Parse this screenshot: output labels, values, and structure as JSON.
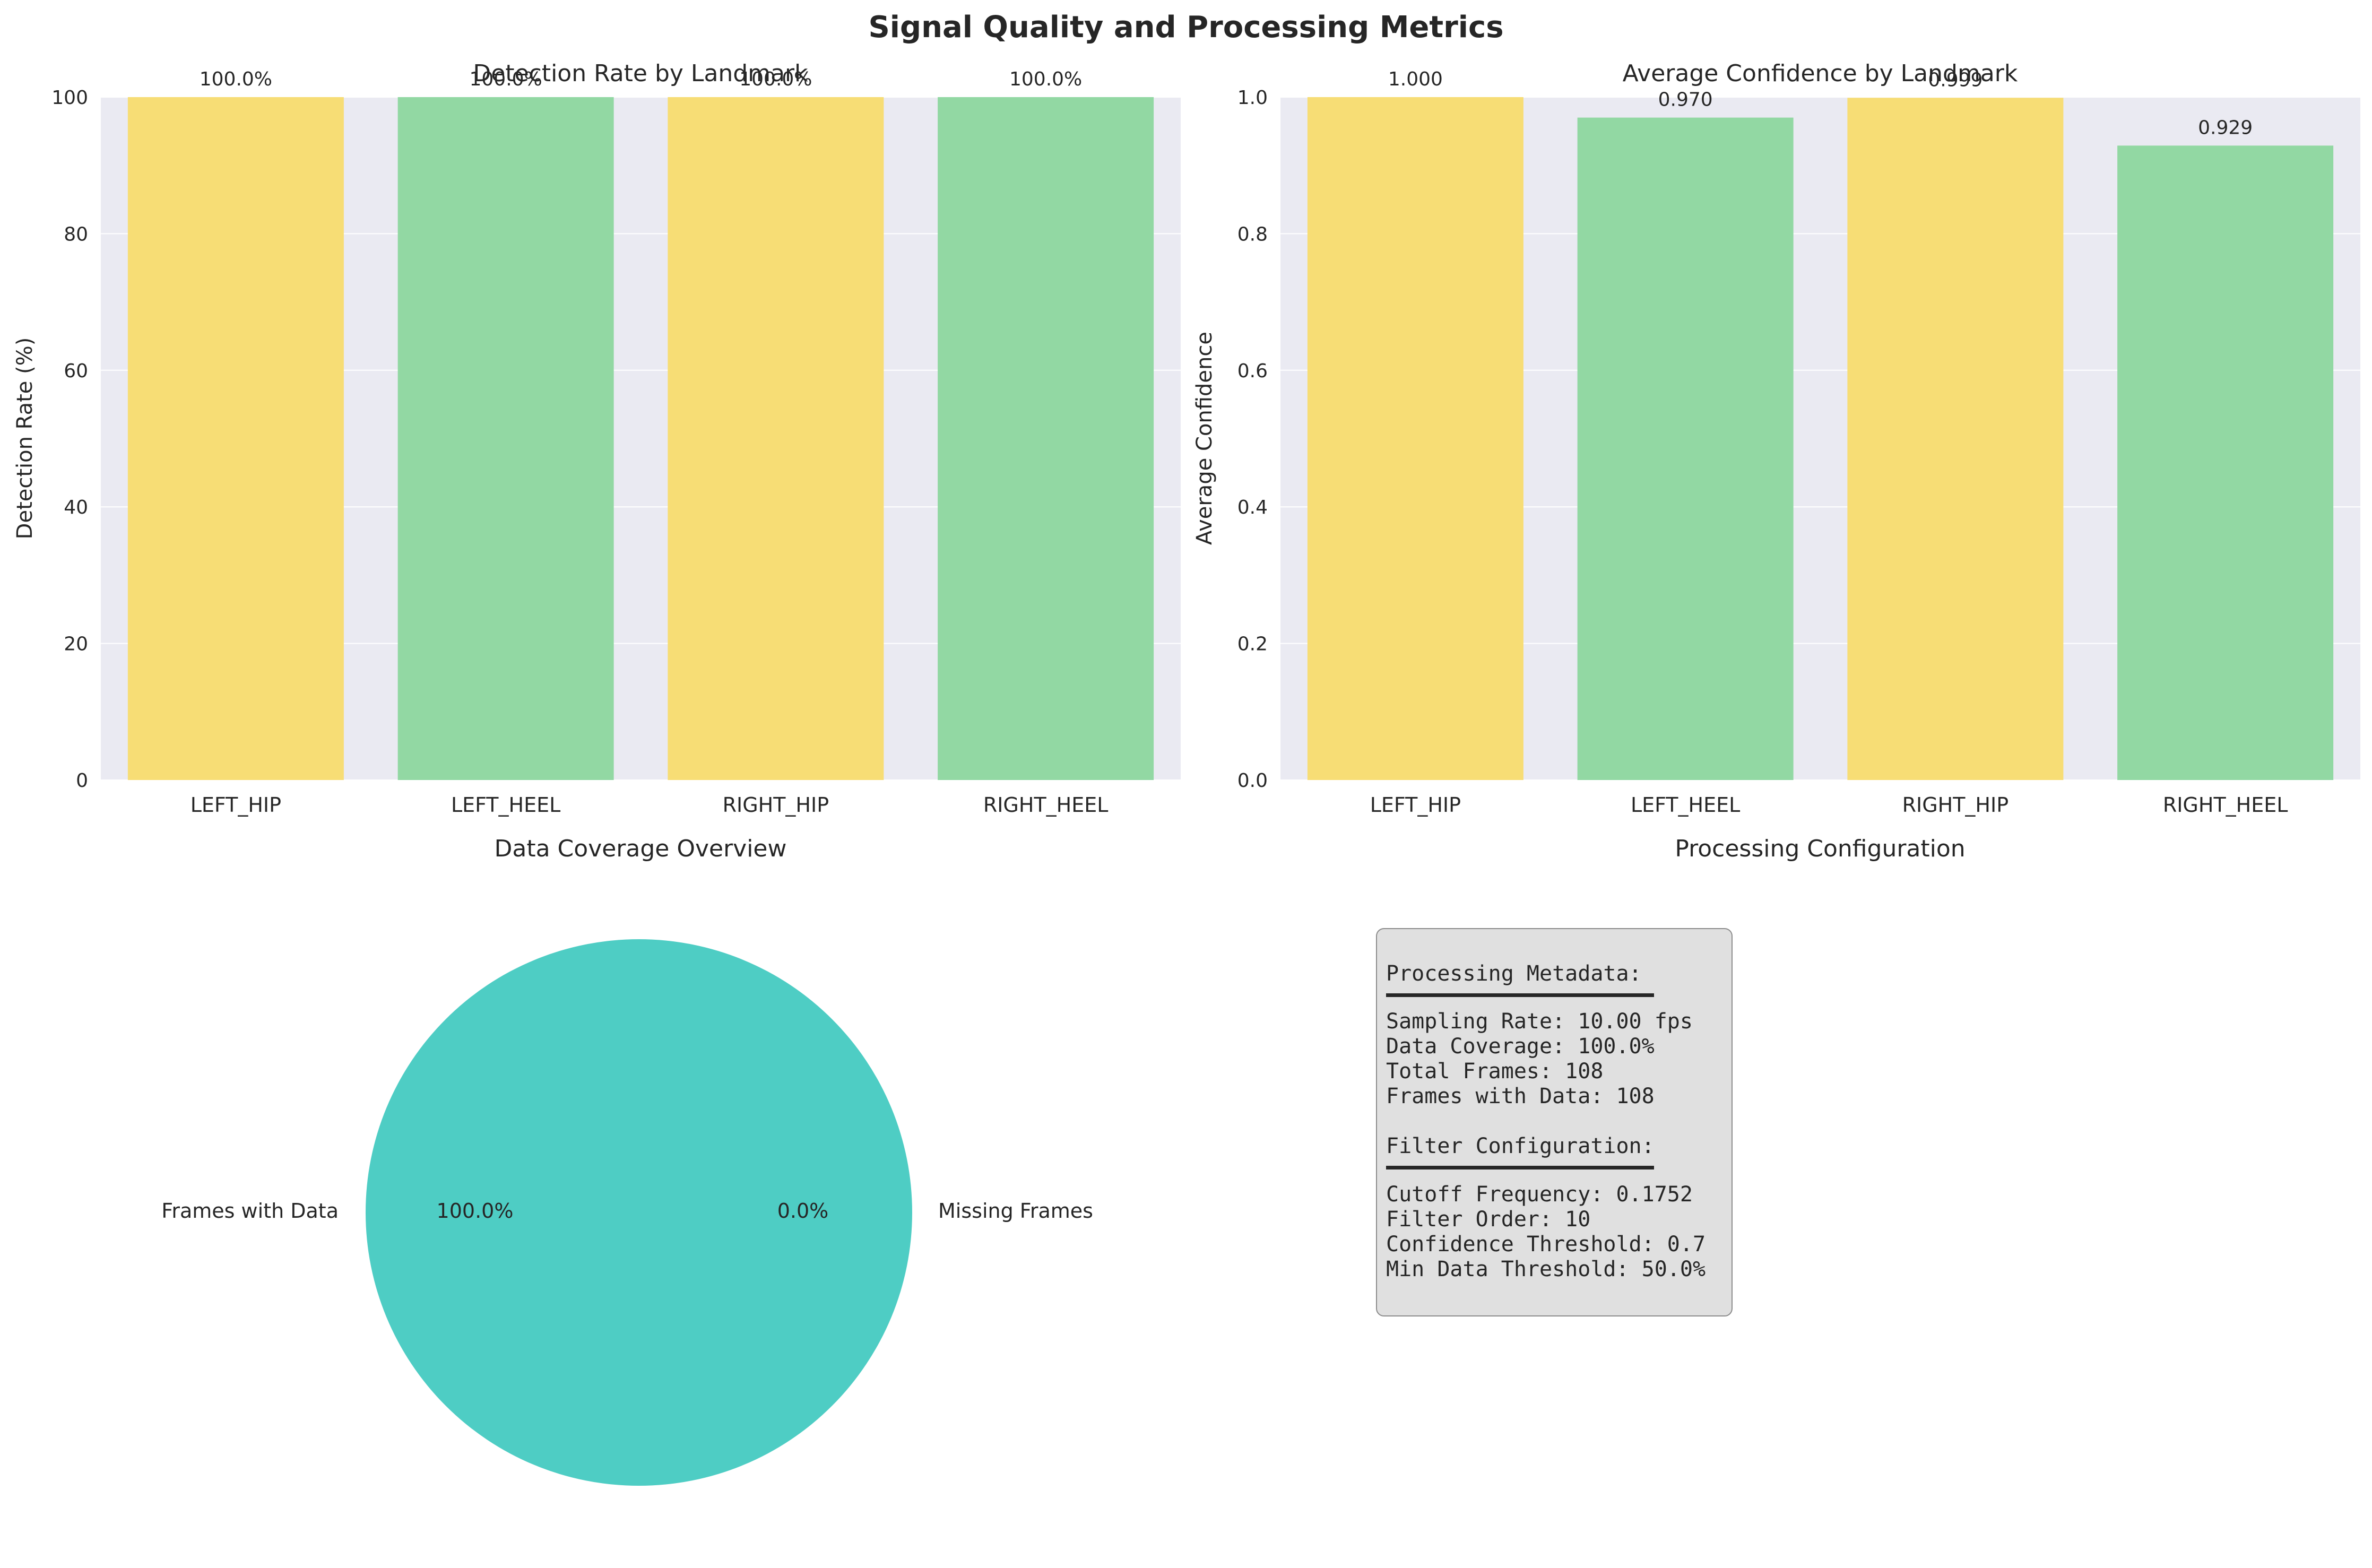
{
  "suptitle": "Signal Quality and Processing Metrics",
  "colors": {
    "axes_bg": "#eaeaf2",
    "grid": "#ffffff",
    "hip": "#f7dd75",
    "heel": "#92d8a3",
    "pie_main": "#4ecdc4",
    "pie_missing": "#ff6b6b",
    "text": "#262626",
    "box_bg": "#e0e0e0",
    "box_edge": "#8c8c8c"
  },
  "chart_data": [
    {
      "type": "bar",
      "title": "Detection Rate by Landmark",
      "xlabel": "",
      "ylabel": "Detection Rate (%)",
      "categories": [
        "LEFT_HIP",
        "LEFT_HEEL",
        "RIGHT_HIP",
        "RIGHT_HEEL"
      ],
      "values": [
        100,
        100,
        100,
        100
      ],
      "value_labels": [
        "100.0%",
        "100.0%",
        "100.0%",
        "100.0%"
      ],
      "bar_colors": [
        "#f7dd75",
        "#92d8a3",
        "#f7dd75",
        "#92d8a3"
      ],
      "ylim": [
        0,
        100
      ],
      "yticks": [
        0,
        20,
        40,
        60,
        80,
        100
      ],
      "ytick_labels": [
        "0",
        "20",
        "40",
        "60",
        "80",
        "100"
      ],
      "grid": true
    },
    {
      "type": "bar",
      "title": "Average Confidence by Landmark",
      "xlabel": "",
      "ylabel": "Average Confidence",
      "categories": [
        "LEFT_HIP",
        "LEFT_HEEL",
        "RIGHT_HIP",
        "RIGHT_HEEL"
      ],
      "values": [
        1.0,
        0.97,
        0.999,
        0.929
      ],
      "value_labels": [
        "1.000",
        "0.970",
        "0.999",
        "0.929"
      ],
      "bar_colors": [
        "#f7dd75",
        "#92d8a3",
        "#f7dd75",
        "#92d8a3"
      ],
      "ylim": [
        0,
        1.0
      ],
      "yticks": [
        0,
        0.2,
        0.4,
        0.6,
        0.8,
        1.0
      ],
      "ytick_labels": [
        "0.0",
        "0.2",
        "0.4",
        "0.6",
        "0.8",
        "1.0"
      ],
      "grid": true
    },
    {
      "type": "pie",
      "title": "Data Coverage Overview",
      "labels": [
        "Frames with Data",
        "Missing Frames"
      ],
      "values": [
        108,
        0
      ],
      "pct_labels": [
        "100.0%",
        "0.0%"
      ],
      "colors": [
        "#4ecdc4",
        "#ff6b6b"
      ]
    }
  ],
  "config_panel": {
    "title": "Processing Configuration",
    "metadata_header": "Processing Metadata:",
    "metadata_lines": [
      "Sampling Rate: 10.00 fps",
      "Data Coverage: 100.0%",
      "Total Frames: 108",
      "Frames with Data: 108"
    ],
    "filter_header": "Filter Configuration:",
    "filter_lines": [
      "Cutoff Frequency: 0.1752",
      "Filter Order: 10",
      "Confidence Threshold: 0.7",
      "Min Data Threshold: 50.0%"
    ]
  }
}
